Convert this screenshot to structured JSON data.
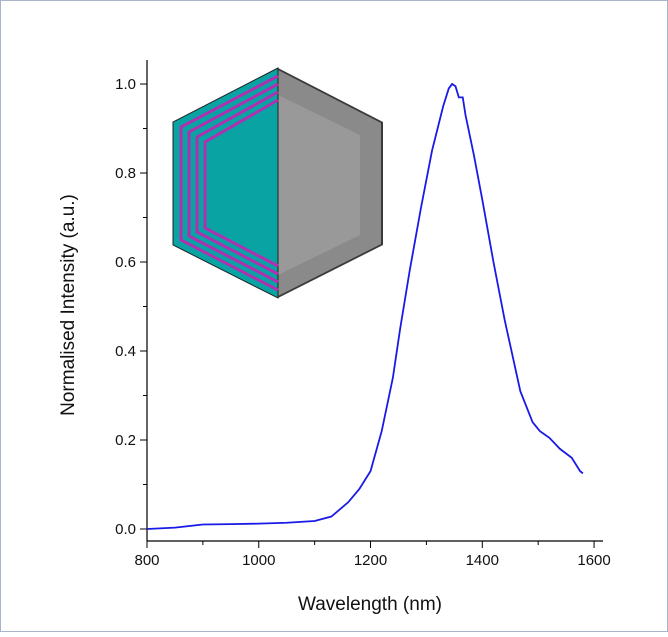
{
  "chart_data": {
    "type": "line",
    "x_label": "Wavelength (nm)",
    "y_label": "Normalised Intensity (a.u.)",
    "x": [
      800,
      850,
      900,
      950,
      1000,
      1050,
      1100,
      1130,
      1160,
      1180,
      1200,
      1220,
      1240,
      1253,
      1270,
      1290,
      1310,
      1330,
      1340,
      1346,
      1352,
      1358,
      1365,
      1370,
      1385,
      1400,
      1420,
      1440,
      1468,
      1490,
      1503,
      1520,
      1539,
      1560,
      1575,
      1580
    ],
    "series": [
      {
        "color": "#1a1ae6",
        "values": [
          0.0,
          0.003,
          0.01,
          0.011,
          0.012,
          0.014,
          0.018,
          0.028,
          0.06,
          0.09,
          0.13,
          0.22,
          0.34,
          0.45,
          0.58,
          0.72,
          0.85,
          0.95,
          0.99,
          1.0,
          0.995,
          0.97,
          0.97,
          0.93,
          0.84,
          0.74,
          0.6,
          0.47,
          0.31,
          0.24,
          0.22,
          0.205,
          0.18,
          0.16,
          0.13,
          0.125
        ]
      }
    ],
    "xlim": [
      800,
      1616
    ],
    "ylim": [
      -0.027,
      1.054
    ],
    "xticks": [
      800,
      1000,
      1200,
      1400,
      1600
    ],
    "yticks": [
      {
        "value": 0,
        "label": "0.0"
      },
      0.2,
      0.4,
      0.6,
      0.8,
      {
        "value": 1,
        "label": "1.0"
      }
    ],
    "x_minor_ticks": [
      900,
      1100,
      1300,
      1500
    ],
    "y_minor_ticks": [
      0.1,
      0.3,
      0.5,
      0.7,
      0.9
    ]
  }
}
